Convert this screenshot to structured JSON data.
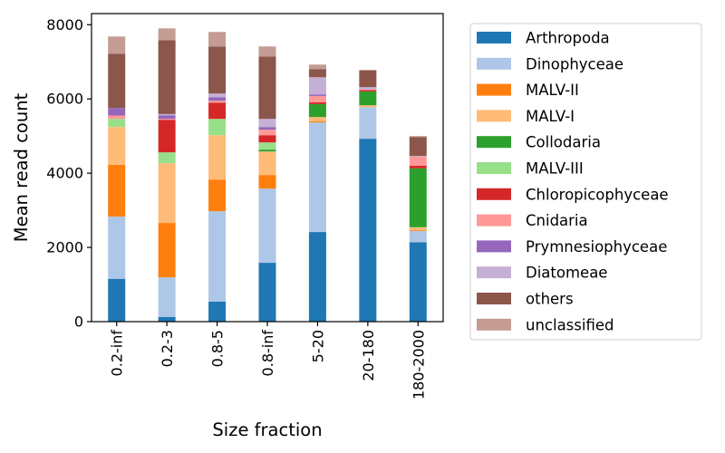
{
  "chart_data": {
    "type": "bar",
    "stacked": true,
    "title": "",
    "xlabel": "Size fraction",
    "ylabel": "Mean read count",
    "categories": [
      "0.2-inf",
      "0.2-3",
      "0.8-5",
      "0.8-inf",
      "5-20",
      "20-180",
      "180-2000"
    ],
    "ylim": [
      0,
      8300
    ],
    "yticks": [
      0,
      2000,
      4000,
      6000,
      8000
    ],
    "ytick_labels": [
      "0",
      "2000",
      "4000",
      "6000",
      "8000"
    ],
    "grid": false,
    "legend_position": "outside-right",
    "series": [
      {
        "name": "Arthropoda",
        "color": "#1f77b4",
        "values": [
          1154,
          122,
          537,
          1585,
          2415,
          4927,
          2139
        ]
      },
      {
        "name": "Dinophyceae",
        "color": "#aec7e8",
        "values": [
          1675,
          1073,
          2439,
          2000,
          2951,
          853,
          307
        ]
      },
      {
        "name": "MALV-II",
        "color": "#ff7f0e",
        "values": [
          1398,
          1464,
          853,
          366,
          32,
          0,
          25
        ]
      },
      {
        "name": "MALV-I",
        "color": "#ffbb78",
        "values": [
          1017,
          1609,
          1195,
          634,
          114,
          49,
          73
        ]
      },
      {
        "name": "Collodaria",
        "color": "#2ca02c",
        "values": [
          0,
          0,
          0,
          49,
          349,
          373,
          1585
        ]
      },
      {
        "name": "MALV-III",
        "color": "#98df8a",
        "values": [
          219,
          293,
          439,
          195,
          0,
          0,
          0
        ]
      },
      {
        "name": "Chloropicophyceae",
        "color": "#d62728",
        "values": [
          0,
          878,
          439,
          195,
          49,
          35,
          73
        ]
      },
      {
        "name": "Cnidaria",
        "color": "#ff9896",
        "values": [
          91,
          24,
          49,
          147,
          170,
          14,
          244
        ]
      },
      {
        "name": "Prymnesiophyceae",
        "color": "#9467bd",
        "values": [
          202,
          98,
          98,
          73,
          35,
          0,
          0
        ]
      },
      {
        "name": "Diatomeae",
        "color": "#c5b0d5",
        "values": [
          0,
          32,
          97,
          219,
          470,
          66,
          17
        ]
      },
      {
        "name": "others",
        "color": "#8c564b",
        "values": [
          1464,
          1992,
          1269,
          1683,
          220,
          446,
          513
        ]
      },
      {
        "name": "unclassified",
        "color": "#c49c94",
        "values": [
          463,
          317,
          390,
          269,
          122,
          25,
          24
        ]
      }
    ]
  }
}
